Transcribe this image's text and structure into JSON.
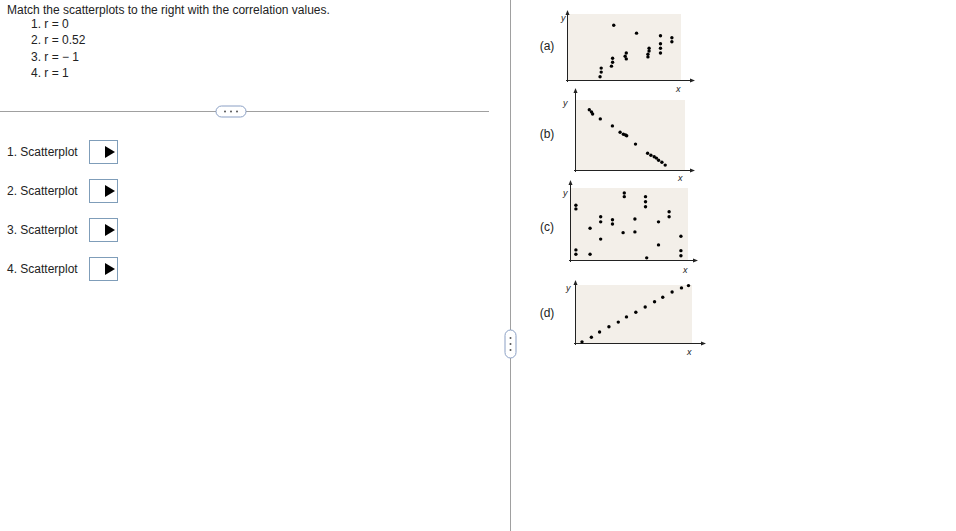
{
  "question": "Match the scatterplots to the right with the correlation values.",
  "correlations": [
    "1. r = 0",
    "2. r = 0.52",
    "3. r = − 1",
    "4. r = 1"
  ],
  "answers": [
    "1. Scatterplot",
    "2. Scatterplot",
    "3. Scatterplot",
    "4. Scatterplot"
  ],
  "chart_data": [
    {
      "type": "scatter",
      "title": "(a)",
      "x_label": "x",
      "y_label": "y",
      "color": "#000000",
      "tick_labels": false,
      "xlim": [
        0,
        10
      ],
      "ylim": [
        0,
        10
      ],
      "x": [
        2.9,
        3.0,
        3.0,
        3.9,
        4.0,
        4.0,
        5.1,
        5.2,
        5.2,
        4.1,
        6.1,
        7.1,
        7.1,
        7.2,
        7.2,
        8.2,
        8.2,
        8.2,
        8.2,
        9.2,
        9.2
      ],
      "y": [
        0.5,
        1.2,
        1.8,
        2.1,
        2.7,
        3.3,
        3.6,
        4.1,
        3.2,
        8.3,
        7.1,
        3.5,
        3.9,
        4.4,
        4.8,
        4.1,
        4.8,
        5.5,
        6.7,
        5.8,
        6.4
      ]
    },
    {
      "type": "scatter",
      "title": "(b)",
      "x_label": "x",
      "y_label": "y",
      "color": "#000000",
      "tick_labels": false,
      "xlim": [
        0,
        10
      ],
      "ylim": [
        0,
        10
      ],
      "x": [
        1.3,
        1.5,
        1.6,
        2.3,
        3.4,
        4.1,
        4.4,
        4.6,
        4.7,
        5.5,
        6.6,
        6.9,
        7.2,
        7.4,
        7.6,
        7.9,
        8.2
      ],
      "y": [
        8.6,
        8.3,
        8.0,
        7.3,
        6.3,
        5.4,
        5.1,
        5.0,
        4.9,
        3.7,
        2.4,
        2.1,
        1.9,
        1.7,
        1.4,
        1.1,
        0.7
      ]
    },
    {
      "type": "scatter",
      "title": "(c)",
      "x_label": "x",
      "y_label": "y",
      "color": "#000000",
      "tick_labels": false,
      "xlim": [
        0,
        10
      ],
      "ylim": [
        0,
        10
      ],
      "x": [
        0.5,
        0.5,
        0.5,
        0.5,
        1.7,
        1.7,
        2.6,
        2.6,
        2.6,
        3.6,
        3.6,
        4.5,
        4.6,
        4.6,
        5.5,
        5.5,
        6.4,
        6.4,
        6.4,
        6.5,
        7.5,
        7.5,
        8.4,
        8.4,
        9.4,
        9.4,
        9.4
      ],
      "y": [
        7.6,
        7.1,
        1.4,
        0.8,
        0.8,
        4.4,
        5.3,
        6.0,
        2.9,
        5.0,
        5.6,
        3.8,
        9.3,
        8.8,
        5.7,
        3.9,
        8.8,
        8.1,
        7.4,
        0.3,
        5.3,
        2.1,
        6.7,
        6.0,
        3.3,
        1.3,
        0.6
      ]
    },
    {
      "type": "scatter",
      "title": "(d)",
      "x_label": "x",
      "y_label": "y",
      "color": "#000000",
      "tick_labels": false,
      "xlim": [
        0,
        10
      ],
      "ylim": [
        0,
        10
      ],
      "x": [
        0.6,
        1.4,
        2.1,
        2.9,
        3.7,
        4.4,
        5.2,
        6.0,
        6.8,
        7.5,
        8.3,
        9.1,
        9.7
      ],
      "y": [
        0.2,
        1.0,
        1.9,
        2.8,
        3.6,
        4.5,
        5.3,
        6.2,
        7.1,
        7.9,
        8.8,
        9.5,
        9.9
      ]
    }
  ]
}
